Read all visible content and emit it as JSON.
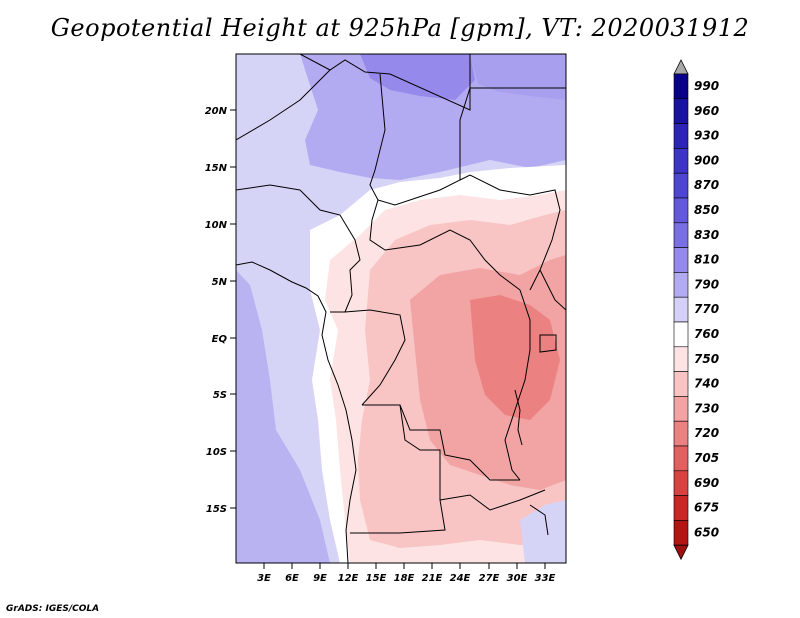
{
  "title": "Geopotential Height at 925hPa [gpm], VT: 2020031912",
  "credit": "GrADS: IGES/COLA",
  "map": {
    "lat_labels": [
      "20N",
      "15N",
      "10N",
      "5N",
      "EQ",
      "5S",
      "10S",
      "15S"
    ],
    "lon_labels": [
      "3E",
      "6E",
      "9E",
      "12E",
      "15E",
      "18E",
      "21E",
      "24E",
      "27E",
      "30E",
      "33E"
    ]
  },
  "colorbar": {
    "levels": [
      "990",
      "960",
      "930",
      "900",
      "870",
      "850",
      "830",
      "810",
      "790",
      "770",
      "760",
      "750",
      "740",
      "730",
      "720",
      "705",
      "690",
      "675",
      "650"
    ],
    "colors": [
      "#09008a",
      "#1a12a4",
      "#2c23b9",
      "#3d33c9",
      "#4e45d5",
      "#6358de",
      "#7a6ee5",
      "#958aec",
      "#b3abf1",
      "#d4d0f7",
      "#ffffff",
      "#fde3e3",
      "#f8c4c4",
      "#f2a3a3",
      "#ec8181",
      "#e46060",
      "#da4242",
      "#cb2626",
      "#b41414"
    ],
    "top_arrow_color": "#a8a8a8",
    "bottom_arrow_color": "#a01010"
  }
}
